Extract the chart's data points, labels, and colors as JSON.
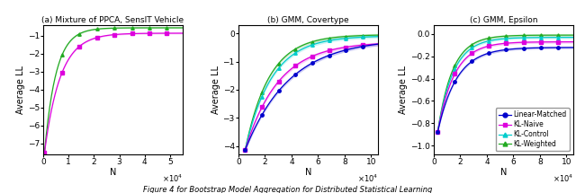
{
  "fig_width": 6.4,
  "fig_height": 2.15,
  "dpi": 100,
  "subplot1": {
    "title": "(a) Mixture of PPCA, SensIT Vehicle",
    "xlabel": "N",
    "ylabel": "Average LL",
    "xlim": [
      0,
      55000
    ],
    "ylim": [
      -7.6,
      -0.4
    ],
    "yticks": [
      -7,
      -6,
      -5,
      -4,
      -3,
      -2,
      -1
    ],
    "x_start": 500,
    "x_end": 55000,
    "lines": [
      {
        "label": "KL-Weighted (green)",
        "color": "#22AA22",
        "marker": "^",
        "markersize": 2.5,
        "y0": -7.5,
        "y_asymp": -0.55,
        "k": 0.00022,
        "band": 0.04
      },
      {
        "label": "KL-Naive (magenta)",
        "color": "#DD00DD",
        "marker": "s",
        "markersize": 2.5,
        "y0": -7.5,
        "y_asymp": -0.85,
        "k": 0.00016,
        "band": 0.04
      }
    ]
  },
  "subplot2": {
    "title": "(b) GMM, Covertype",
    "xlabel": "N",
    "ylabel": "Average LL",
    "xlim": [
      0,
      105000
    ],
    "ylim": [
      -4.3,
      0.3
    ],
    "yticks": [
      -4,
      -3,
      -2,
      -1,
      0
    ],
    "x_start": 5000,
    "x_end": 105000,
    "lines": [
      {
        "label": "KL-Weighted",
        "color": "#22AA22",
        "marker": "^",
        "markersize": 2.5,
        "y0": -4.15,
        "y_asymp": -0.04,
        "k": 5.5e-05,
        "band": 0.06
      },
      {
        "label": "KL-Control",
        "color": "#00CCCC",
        "marker": "^",
        "markersize": 2.5,
        "y0": -4.15,
        "y_asymp": -0.08,
        "k": 5e-05,
        "band": 0.06
      },
      {
        "label": "KL-Naive",
        "color": "#DD00DD",
        "marker": "s",
        "markersize": 2.5,
        "y0": -4.15,
        "y_asymp": -0.3,
        "k": 4e-05,
        "band": 0.06
      },
      {
        "label": "Linear-Matched",
        "color": "#0000CC",
        "marker": "o",
        "markersize": 2.5,
        "y0": -4.15,
        "y_asymp": -0.18,
        "k": 3e-05,
        "band": 0.06
      }
    ]
  },
  "subplot3": {
    "title": "(c) GMM, Epsilon",
    "xlabel": "N",
    "ylabel": "Average LL",
    "xlim": [
      0,
      105000
    ],
    "ylim": [
      -1.08,
      0.08
    ],
    "yticks": [
      -1.0,
      -0.8,
      -0.6,
      -0.4,
      -0.2,
      0.0
    ],
    "x_start": 3000,
    "x_end": 105000,
    "lines": [
      {
        "label": "KL-Weighted",
        "color": "#22AA22",
        "marker": "^",
        "markersize": 2.5,
        "y0": -0.88,
        "y_asymp": -0.01,
        "k": 9e-05,
        "band": 0.012
      },
      {
        "label": "KL-Control",
        "color": "#00CCCC",
        "marker": "^",
        "markersize": 2.5,
        "y0": -0.88,
        "y_asymp": -0.03,
        "k": 8.5e-05,
        "band": 0.012
      },
      {
        "label": "KL-Naive",
        "color": "#DD00DD",
        "marker": "s",
        "markersize": 2.5,
        "y0": -0.88,
        "y_asymp": -0.07,
        "k": 8e-05,
        "band": 0.012
      },
      {
        "label": "Linear-Matched",
        "color": "#0000CC",
        "marker": "o",
        "markersize": 2.5,
        "y0": -0.88,
        "y_asymp": -0.12,
        "k": 7e-05,
        "band": 0.012
      }
    ],
    "legend_labels": [
      "Linear-Matched",
      "KL-Naive",
      "KL-Control",
      "KL-Weighted"
    ],
    "legend_colors": [
      "#0000CC",
      "#DD00DD",
      "#00CCCC",
      "#22AA22"
    ],
    "legend_markers": [
      "o",
      "s",
      "^",
      "^"
    ]
  },
  "caption": "Figure 4 for Bootstrap Model Aggregation for Distributed Statistical Learning"
}
